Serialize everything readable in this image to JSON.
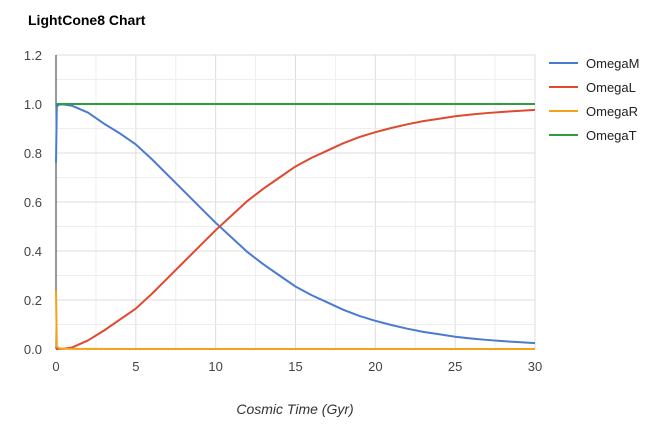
{
  "chart_data": {
    "type": "line",
    "title": "LightCone8 Chart",
    "xlabel": "Cosmic Time (Gyr)",
    "ylabel": "",
    "xlim": [
      0,
      30
    ],
    "ylim": [
      0,
      1.2
    ],
    "xticks": [
      0,
      5,
      10,
      15,
      20,
      25,
      30
    ],
    "yticks": [
      0.0,
      0.2,
      0.4,
      0.6,
      0.8,
      1.0,
      1.2
    ],
    "ytick_labels": [
      "0.0",
      "0.2",
      "0.4",
      "0.6",
      "0.8",
      "1.0",
      "1.2"
    ],
    "grid": true,
    "legend": "right",
    "series": [
      {
        "name": "OmegaM",
        "color": "#4a7bd0",
        "x": [
          0,
          0.05,
          0.2,
          0.5,
          1,
          2,
          3,
          4,
          5,
          6,
          7,
          8,
          9,
          10,
          11,
          12,
          13,
          14,
          15,
          16,
          17,
          18,
          19,
          20,
          21,
          22,
          23,
          24,
          25,
          26,
          27,
          28,
          29,
          30
        ],
        "y": [
          0.76,
          0.99,
          0.998,
          0.998,
          0.993,
          0.965,
          0.92,
          0.88,
          0.835,
          0.775,
          0.71,
          0.645,
          0.58,
          0.515,
          0.455,
          0.395,
          0.345,
          0.3,
          0.255,
          0.22,
          0.19,
          0.16,
          0.135,
          0.115,
          0.098,
          0.083,
          0.07,
          0.06,
          0.05,
          0.043,
          0.037,
          0.032,
          0.028,
          0.024
        ]
      },
      {
        "name": "OmegaL",
        "color": "#e0492f",
        "x": [
          0,
          0.5,
          1,
          2,
          3,
          4,
          5,
          6,
          7,
          8,
          9,
          10,
          11,
          12,
          13,
          14,
          15,
          16,
          17,
          18,
          19,
          20,
          21,
          22,
          23,
          24,
          25,
          26,
          27,
          28,
          29,
          30
        ],
        "y": [
          0.0,
          0.001,
          0.006,
          0.035,
          0.075,
          0.12,
          0.165,
          0.225,
          0.29,
          0.355,
          0.42,
          0.485,
          0.545,
          0.605,
          0.655,
          0.7,
          0.745,
          0.78,
          0.81,
          0.84,
          0.865,
          0.885,
          0.902,
          0.917,
          0.93,
          0.94,
          0.95,
          0.957,
          0.963,
          0.968,
          0.972,
          0.976
        ]
      },
      {
        "name": "OmegaR",
        "color": "#f4a21a",
        "x": [
          0,
          0.05,
          0.2,
          0.5,
          1,
          5,
          10,
          20,
          30
        ],
        "y": [
          0.24,
          0.01,
          0.003,
          0.001,
          0.0005,
          0.0,
          0.0,
          0.0,
          0.0
        ]
      },
      {
        "name": "OmegaT",
        "color": "#2e9d3b",
        "x": [
          0,
          30
        ],
        "y": [
          1.0,
          1.0
        ]
      }
    ]
  }
}
